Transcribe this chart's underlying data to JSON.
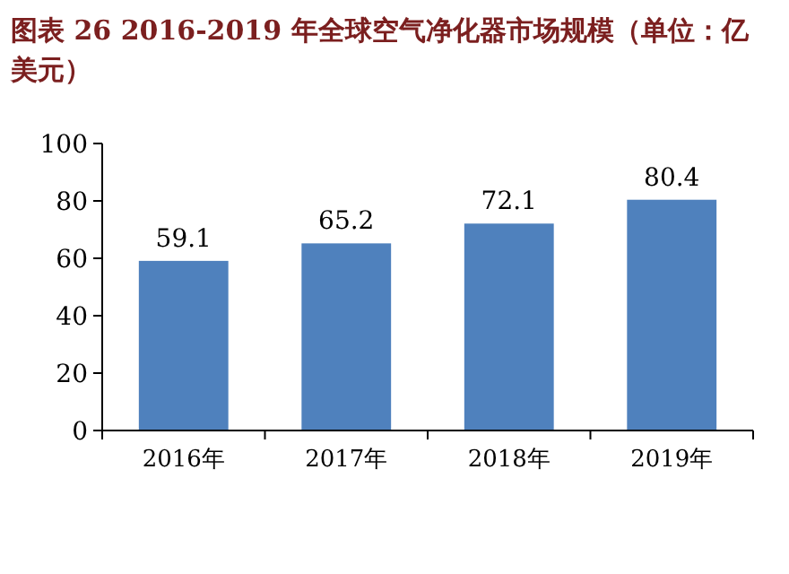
{
  "chart_data": {
    "type": "bar",
    "title": "图表 26   2016-2019 年全球空气净化器市场规模（单位：亿美元）",
    "categories": [
      "2016年",
      "2017年",
      "2018年",
      "2019年"
    ],
    "values": [
      59.1,
      65.2,
      72.1,
      80.4
    ],
    "color": "#4f81bd",
    "ylim": [
      0,
      100
    ],
    "yticks": [
      0,
      20,
      40,
      60,
      80,
      100
    ],
    "data_labels": true
  }
}
